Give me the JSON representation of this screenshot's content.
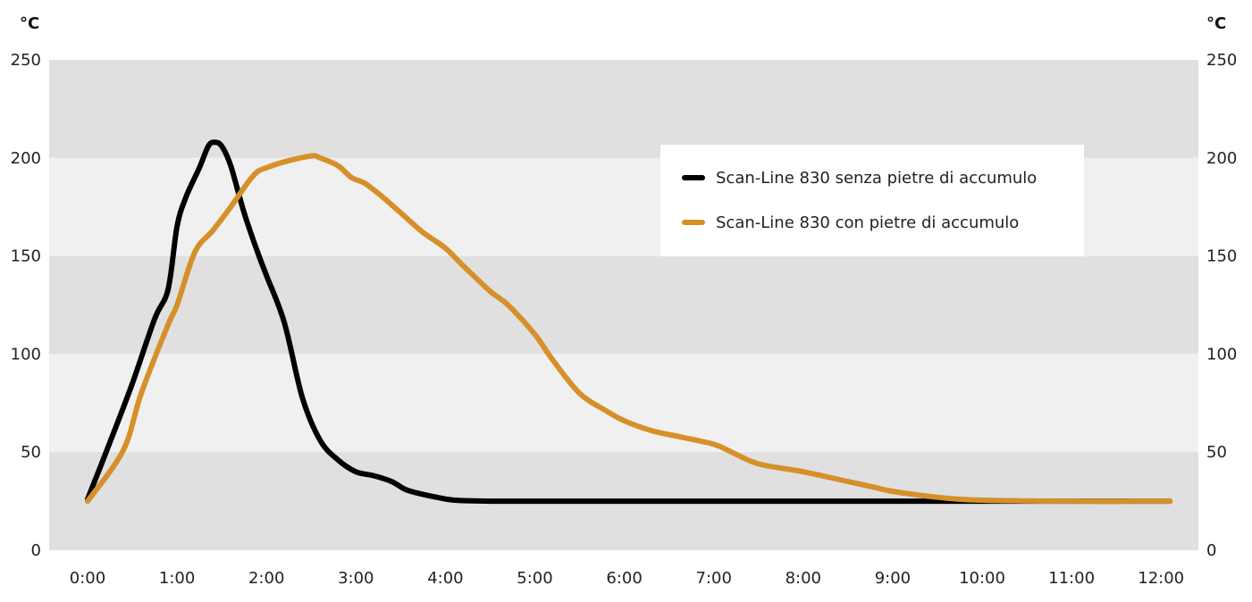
{
  "chart_data": {
    "type": "line",
    "title": "",
    "ylabel_left": "°C",
    "ylabel_right": "°C",
    "ylim": [
      0,
      250
    ],
    "yticks": [
      "0",
      "50",
      "100",
      "150",
      "200",
      "250"
    ],
    "xlim": [
      0,
      12
    ],
    "xticks": [
      "0:00",
      "1:00",
      "2:00",
      "3:00",
      "4:00",
      "5:00",
      "6:00",
      "7:00",
      "8:00",
      "9:00",
      "10:00",
      "11:00",
      "12:00"
    ],
    "grid": "alternating horizontal bands",
    "legend_position": "top-right",
    "colors": {
      "band_dark": "#e0e0e0",
      "band_light": "#f0f0f0",
      "legend_bg": "#ffffff"
    },
    "series": [
      {
        "name": "Scan-Line 830 senza pietre di accumulo",
        "color": "#000000",
        "x": [
          0,
          0.25,
          0.5,
          0.75,
          0.9,
          1.0,
          1.1,
          1.25,
          1.35,
          1.42,
          1.5,
          1.6,
          1.75,
          1.9,
          2.0,
          2.2,
          2.4,
          2.6,
          2.8,
          3.0,
          3.2,
          3.4,
          3.55,
          3.7,
          3.9,
          4.1,
          4.5,
          5.0,
          6.0,
          7.0,
          8.0,
          9.0,
          10.0,
          11.0,
          12.1
        ],
        "values": [
          26,
          55,
          85,
          118,
          133,
          165,
          180,
          195,
          206,
          208,
          206,
          196,
          172,
          152,
          140,
          116,
          78,
          56,
          46,
          40,
          38,
          35,
          31,
          29,
          27,
          25.5,
          25,
          25,
          25,
          25,
          25,
          25,
          25,
          25,
          25
        ]
      },
      {
        "name": "Scan-Line 830 con pietre di accumulo",
        "color": "#d6902a",
        "x": [
          0,
          0.4,
          0.6,
          0.9,
          1.0,
          1.2,
          1.4,
          1.6,
          1.8,
          1.9,
          2.0,
          2.2,
          2.5,
          2.6,
          2.8,
          2.95,
          3.1,
          3.3,
          3.5,
          3.75,
          4.0,
          4.2,
          4.5,
          4.7,
          5.0,
          5.2,
          5.5,
          5.8,
          6.0,
          6.3,
          6.6,
          7.0,
          7.2,
          7.5,
          8.0,
          8.5,
          8.8,
          9.0,
          9.5,
          10.0,
          11.0,
          12.1
        ],
        "values": [
          25,
          51,
          80,
          115,
          125,
          152,
          163,
          175,
          188,
          193,
          195,
          198,
          201,
          200,
          196,
          190,
          187,
          180,
          172,
          162,
          154,
          145,
          132,
          125,
          110,
          97,
          80,
          71,
          66,
          61,
          58,
          54,
          50,
          44,
          40,
          35,
          32,
          30,
          27,
          25.5,
          25,
          25
        ]
      }
    ]
  }
}
